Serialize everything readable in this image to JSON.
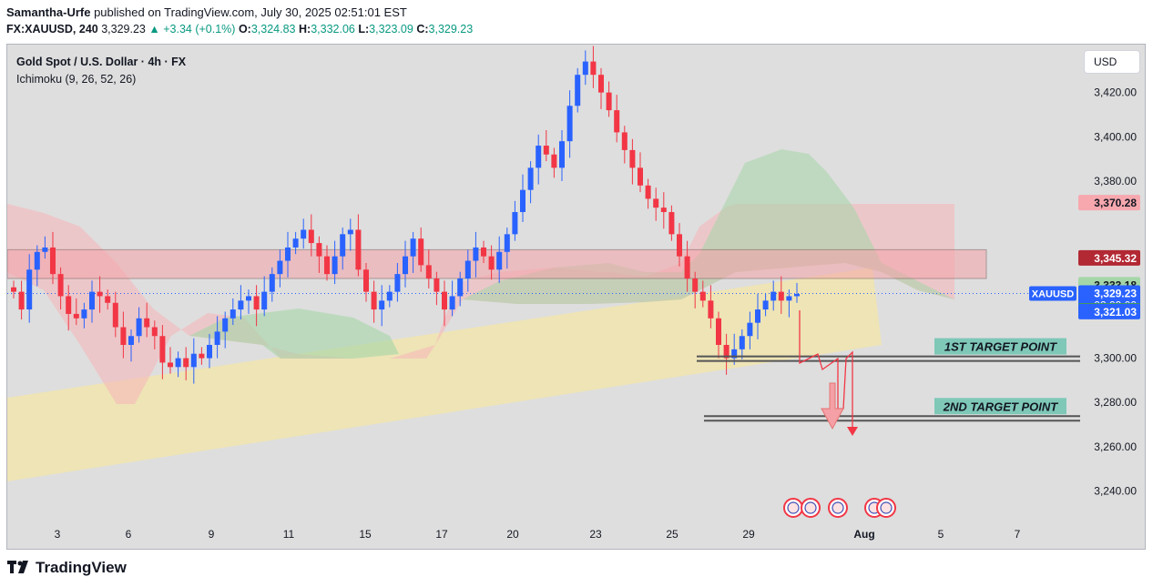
{
  "header": {
    "author": "Samantha-Urfe",
    "published_text": " published on TradingView.com, July 30, 2025 02:51:01 EST",
    "symbol": "FX:XAUUSD, 240",
    "last": "3,329.23",
    "change": "+3.34 (+0.1%)",
    "o_label": "O:",
    "o": "3,324.83",
    "h_label": "H:",
    "h": "3,332.06",
    "l_label": "L:",
    "l": "3,323.09",
    "c_label": "C:",
    "c": "3,329.23"
  },
  "chart_title": "Gold Spot / U.S. Dollar · 4h · FX",
  "indicator": "Ichimoku (9, 26, 52, 26)",
  "currency_button": "USD",
  "brand": "TradingView",
  "colors": {
    "up": "#2962ff",
    "down": "#f23645",
    "background": "#dedede",
    "cloud_green": "#a5d6a7",
    "cloud_red": "#f7b4b8",
    "channel": "#f3e6a8"
  },
  "chart_data": {
    "type": "candlestick",
    "y_axis": {
      "ticks": [
        "3,420.00",
        "3,400.00",
        "3,380.00",
        "3,300.00",
        "3,280.00",
        "3,260.00",
        "3,240.00"
      ],
      "tick_values": [
        3420,
        3400,
        3380,
        3300,
        3280,
        3260,
        3240
      ],
      "ylim": [
        3232,
        3440
      ]
    },
    "x_axis": {
      "ticks": [
        "3",
        "6",
        "9",
        "11",
        "15",
        "17",
        "20",
        "23",
        "25",
        "29",
        "Aug",
        "5",
        "7"
      ]
    },
    "price_labels": [
      {
        "text": "3,370.28",
        "value": 3370.28,
        "color": "#f7a8ae",
        "text_color": "#131722"
      },
      {
        "text": "3,345.32",
        "value": 3345.32,
        "color": "#b22833",
        "text_color": "#ffffff"
      },
      {
        "text": "3,333.18",
        "value": 3333.18,
        "color": "#a5d6a7",
        "text_color": "#131722"
      },
      {
        "text": "3,329.23",
        "value": 3329.23,
        "color": "#2962ff",
        "text_color": "#ffffff",
        "sub": "02:09:00",
        "tag": "XAUUSD"
      },
      {
        "text": "3,329.23",
        "value": 3329.23,
        "color": "#43a047",
        "text_color": "#ffffff",
        "offset": 1
      },
      {
        "text": "3,321.03",
        "value": 3321.03,
        "color": "#2962ff",
        "text_color": "#ffffff"
      }
    ],
    "candles_close": [
      3330,
      3322,
      3340,
      3348,
      3350,
      3338,
      3328,
      3320,
      3318,
      3322,
      3330,
      3328,
      3325,
      3314,
      3306,
      3310,
      3318,
      3314,
      3310,
      3298,
      3296,
      3300,
      3296,
      3302,
      3300,
      3306,
      3312,
      3318,
      3322,
      3326,
      3328,
      3322,
      3330,
      3338,
      3344,
      3350,
      3354,
      3358,
      3352,
      3346,
      3338,
      3346,
      3356,
      3358,
      3340,
      3330,
      3322,
      3326,
      3330,
      3338,
      3346,
      3354,
      3342,
      3336,
      3330,
      3322,
      3328,
      3336,
      3344,
      3350,
      3346,
      3340,
      3348,
      3356,
      3366,
      3376,
      3386,
      3396,
      3392,
      3386,
      3398,
      3414,
      3428,
      3434,
      3428,
      3420,
      3412,
      3402,
      3394,
      3386,
      3378,
      3372,
      3368,
      3366,
      3356,
      3346,
      3336,
      3330,
      3326,
      3318,
      3306,
      3300,
      3304,
      3310,
      3316,
      3322,
      3326,
      3330,
      3326,
      3328,
      3329
    ],
    "levels": [
      {
        "label": "1ST TARGET POINT",
        "value": 3300
      },
      {
        "label": "2ND TARGET POINT",
        "value": 3273
      }
    ],
    "zones": [
      {
        "name": "resistance",
        "from": 3336,
        "to": 3349
      }
    ]
  }
}
